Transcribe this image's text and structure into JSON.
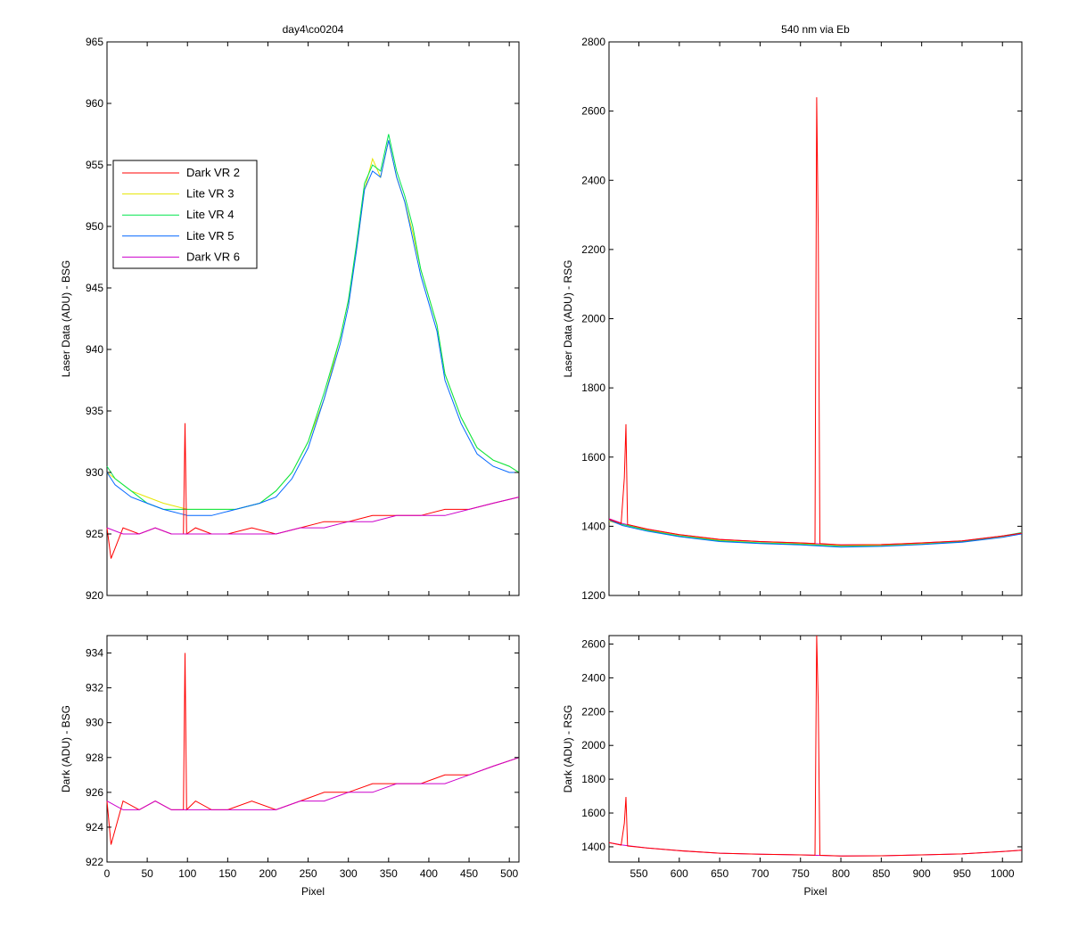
{
  "figure": {
    "colors": {
      "Dark VR 2": "#ff0000",
      "Lite VR 3": "#e6e600",
      "Lite VR 4": "#00e64d",
      "Lite VR 5": "#0066ff",
      "Dark VR 6": "#cc00cc"
    }
  },
  "chart_data": [
    {
      "id": "top-left",
      "type": "line",
      "title": "day4\\co0204",
      "xlabel": "",
      "ylabel": "Laser Data (ADU) - BSG",
      "xlim": [
        0,
        512
      ],
      "ylim": [
        920,
        965
      ],
      "xticks": [
        0,
        50,
        100,
        150,
        200,
        250,
        300,
        350,
        400,
        450,
        500
      ],
      "xtick_labels_visible": false,
      "yticks": [
        920,
        925,
        930,
        935,
        940,
        945,
        950,
        955,
        960,
        965
      ],
      "legend": {
        "position": "upper-left",
        "entries": [
          "Dark VR 2",
          "Lite VR 3",
          "Lite VR 4",
          "Lite VR 5",
          "Dark VR 6"
        ]
      },
      "series": [
        {
          "name": "Lite VR 3",
          "x": [
            0,
            10,
            30,
            50,
            70,
            100,
            130,
            160,
            190,
            210,
            230,
            250,
            270,
            290,
            300,
            310,
            320,
            330,
            340,
            350,
            360,
            370,
            380,
            390,
            410,
            420,
            440,
            460,
            480,
            500,
            512
          ],
          "y": [
            930,
            929.5,
            928.5,
            928,
            927.5,
            927,
            927,
            927,
            927.5,
            928.5,
            930,
            932.5,
            936,
            941,
            944,
            948,
            953,
            955.5,
            954,
            957,
            954,
            952,
            949.5,
            946.5,
            942,
            938,
            934.5,
            932,
            931,
            930.5,
            930
          ]
        },
        {
          "name": "Lite VR 4",
          "x": [
            0,
            10,
            30,
            50,
            70,
            100,
            130,
            160,
            190,
            210,
            230,
            250,
            270,
            290,
            300,
            310,
            320,
            330,
            340,
            350,
            360,
            370,
            380,
            390,
            410,
            420,
            440,
            460,
            480,
            500,
            512
          ],
          "y": [
            930.5,
            929.5,
            928.5,
            927.5,
            927,
            927,
            927,
            927,
            927.5,
            928.5,
            930,
            932.5,
            936.5,
            941,
            944,
            948.5,
            953.5,
            955,
            954.5,
            957.5,
            954.5,
            952.5,
            950,
            946.5,
            942,
            938,
            934.5,
            932,
            931,
            930.5,
            930
          ]
        },
        {
          "name": "Lite VR 5",
          "x": [
            0,
            10,
            30,
            50,
            70,
            100,
            130,
            160,
            190,
            210,
            230,
            250,
            270,
            290,
            300,
            310,
            320,
            330,
            340,
            350,
            360,
            370,
            380,
            390,
            410,
            420,
            440,
            460,
            480,
            500,
            512
          ],
          "y": [
            930,
            929,
            928,
            927.5,
            927,
            926.5,
            926.5,
            927,
            927.5,
            928,
            929.5,
            932,
            936,
            940.5,
            943.5,
            948,
            953,
            954.5,
            954,
            957,
            954,
            952,
            949,
            946,
            941.5,
            937.5,
            934,
            931.5,
            930.5,
            930,
            930
          ]
        },
        {
          "name": "Dark VR 2",
          "x": [
            0,
            5,
            20,
            40,
            60,
            80,
            95,
            97,
            99,
            110,
            130,
            150,
            180,
            210,
            240,
            270,
            300,
            330,
            360,
            390,
            420,
            450,
            480,
            512
          ],
          "y": [
            925.5,
            923,
            925.5,
            925,
            925.5,
            925,
            925,
            934,
            925,
            925.5,
            925,
            925,
            925.5,
            925,
            925.5,
            926,
            926,
            926.5,
            926.5,
            926.5,
            927,
            927,
            927.5,
            928
          ]
        },
        {
          "name": "Dark VR 6",
          "x": [
            0,
            20,
            40,
            60,
            80,
            100,
            120,
            150,
            180,
            210,
            240,
            270,
            300,
            330,
            360,
            390,
            420,
            450,
            480,
            512
          ],
          "y": [
            925.5,
            925,
            925,
            925.5,
            925,
            925,
            925,
            925,
            925,
            925,
            925.5,
            925.5,
            926,
            926,
            926.5,
            926.5,
            926.5,
            927,
            927.5,
            928
          ]
        }
      ]
    },
    {
      "id": "bottom-left",
      "type": "line",
      "title": "",
      "xlabel": "Pixel",
      "ylabel": "Dark (ADU) - BSG",
      "xlim": [
        0,
        512
      ],
      "ylim": [
        922,
        935
      ],
      "xticks": [
        0,
        50,
        100,
        150,
        200,
        250,
        300,
        350,
        400,
        450,
        500
      ],
      "xtick_labels_visible": true,
      "yticks": [
        922,
        924,
        926,
        928,
        930,
        932,
        934
      ],
      "series": [
        {
          "name": "Dark VR 2",
          "x": [
            0,
            5,
            20,
            40,
            60,
            80,
            95,
            97,
            99,
            110,
            130,
            150,
            180,
            210,
            240,
            270,
            300,
            330,
            360,
            390,
            420,
            450,
            480,
            512
          ],
          "y": [
            925.5,
            923,
            925.5,
            925,
            925.5,
            925,
            925,
            934,
            925,
            925.5,
            925,
            925,
            925.5,
            925,
            925.5,
            926,
            926,
            926.5,
            926.5,
            926.5,
            927,
            927,
            927.5,
            928
          ]
        },
        {
          "name": "Dark VR 6",
          "x": [
            0,
            20,
            40,
            60,
            80,
            100,
            120,
            150,
            180,
            210,
            240,
            270,
            300,
            330,
            360,
            390,
            420,
            450,
            480,
            512
          ],
          "y": [
            925.5,
            925,
            925,
            925.5,
            925,
            925,
            925,
            925,
            925,
            925,
            925.5,
            925.5,
            926,
            926,
            926.5,
            926.5,
            926.5,
            927,
            927.5,
            928
          ]
        }
      ]
    },
    {
      "id": "top-right",
      "type": "line",
      "title": "540 nm via Eb",
      "xlabel": "",
      "ylabel": "Laser Data (ADU) - RSG",
      "xlim": [
        513,
        1024
      ],
      "ylim": [
        1200,
        2800
      ],
      "xticks": [
        550,
        600,
        650,
        700,
        750,
        800,
        850,
        900,
        950,
        1000
      ],
      "xtick_labels_visible": false,
      "yticks": [
        1200,
        1400,
        1600,
        1800,
        2000,
        2200,
        2400,
        2600,
        2800
      ],
      "series": [
        {
          "name": "Lite VR 3",
          "x": [
            513,
            530,
            560,
            600,
            650,
            700,
            750,
            800,
            850,
            900,
            950,
            1000,
            1024
          ],
          "y": [
            1415,
            1405,
            1390,
            1375,
            1360,
            1355,
            1350,
            1345,
            1345,
            1350,
            1355,
            1370,
            1380
          ]
        },
        {
          "name": "Lite VR 4",
          "x": [
            513,
            530,
            560,
            600,
            650,
            700,
            750,
            800,
            850,
            900,
            950,
            1000,
            1024
          ],
          "y": [
            1420,
            1405,
            1388,
            1372,
            1358,
            1352,
            1348,
            1342,
            1343,
            1348,
            1356,
            1372,
            1382
          ]
        },
        {
          "name": "Lite VR 5",
          "x": [
            513,
            530,
            560,
            600,
            650,
            700,
            750,
            800,
            850,
            900,
            950,
            1000,
            1024
          ],
          "y": [
            1418,
            1402,
            1386,
            1370,
            1356,
            1350,
            1346,
            1340,
            1342,
            1347,
            1354,
            1368,
            1378
          ]
        },
        {
          "name": "Dark VR 6",
          "x": [
            513,
            530,
            560,
            600,
            650,
            700,
            750,
            800,
            850,
            900,
            950,
            1000,
            1024
          ],
          "y": [
            1422,
            1408,
            1392,
            1376,
            1362,
            1356,
            1352,
            1346,
            1347,
            1352,
            1358,
            1372,
            1380
          ]
        },
        {
          "name": "Dark VR 2",
          "x": [
            513,
            528,
            532,
            534,
            536,
            560,
            600,
            650,
            700,
            750,
            768,
            770,
            772,
            774,
            800,
            850,
            900,
            950,
            1000,
            1024
          ],
          "y": [
            1420,
            1408,
            1540,
            1695,
            1405,
            1392,
            1376,
            1362,
            1356,
            1352,
            1350,
            2640,
            2240,
            1350,
            1346,
            1347,
            1352,
            1358,
            1372,
            1380
          ]
        }
      ]
    },
    {
      "id": "bottom-right",
      "type": "line",
      "title": "",
      "xlabel": "Pixel",
      "ylabel": "Dark (ADU) - RSG",
      "xlim": [
        513,
        1024
      ],
      "ylim": [
        1310,
        2650
      ],
      "xticks": [
        550,
        600,
        650,
        700,
        750,
        800,
        850,
        900,
        950,
        1000
      ],
      "xtick_labels_visible": true,
      "yticks": [
        1400,
        1600,
        1800,
        2000,
        2200,
        2400,
        2600
      ],
      "series": [
        {
          "name": "Dark VR 6",
          "x": [
            513,
            530,
            560,
            600,
            650,
            700,
            750,
            800,
            850,
            900,
            950,
            1000,
            1024
          ],
          "y": [
            1425,
            1410,
            1393,
            1377,
            1362,
            1356,
            1352,
            1346,
            1347,
            1352,
            1358,
            1372,
            1380
          ]
        },
        {
          "name": "Dark VR 2",
          "x": [
            513,
            528,
            532,
            534,
            536,
            560,
            600,
            650,
            700,
            750,
            768,
            770,
            772,
            774,
            800,
            850,
            900,
            950,
            1000,
            1024
          ],
          "y": [
            1425,
            1410,
            1540,
            1695,
            1405,
            1393,
            1377,
            1362,
            1356,
            1352,
            1350,
            2650,
            2240,
            1350,
            1346,
            1347,
            1352,
            1358,
            1372,
            1380
          ]
        }
      ]
    }
  ]
}
